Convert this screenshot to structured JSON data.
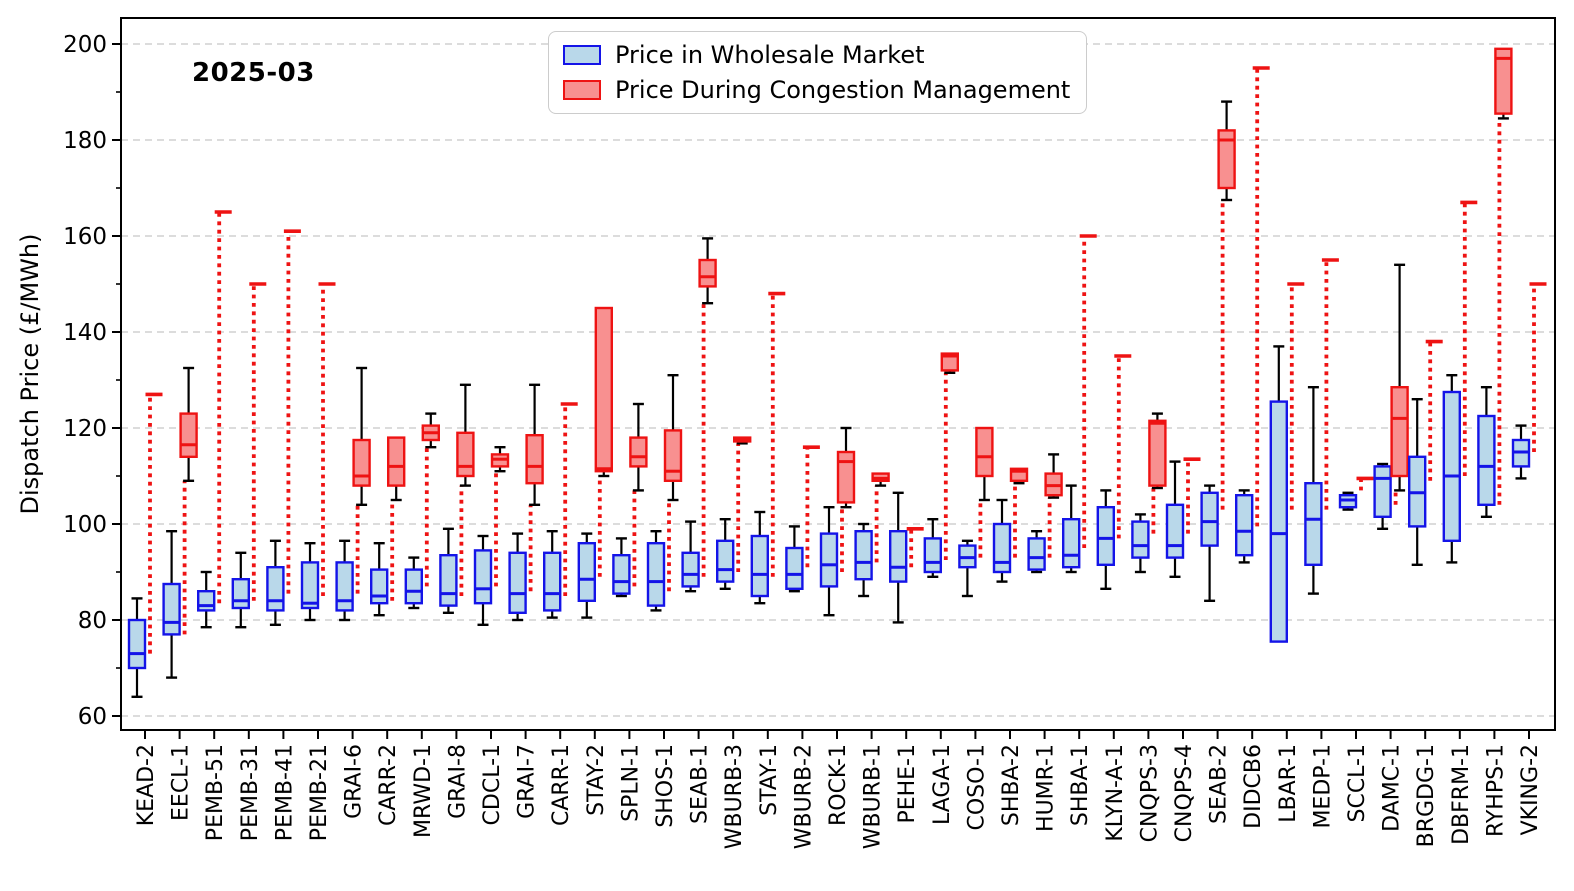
{
  "title": "2025-03",
  "ylabel": "Dispatch Price (£/MWh)",
  "legend": {
    "items": [
      {
        "label": "Price in Wholesale Market",
        "series": "wholesale"
      },
      {
        "label": "Price During Congestion Management",
        "series": "congestion"
      }
    ]
  },
  "colors": {
    "wholesale_fill": "#b9d8ea",
    "wholesale_border": "#1414e8",
    "congestion_fill": "#f89090",
    "congestion_border": "#ee1313",
    "whisker": "#000000",
    "connector": "#ee1313",
    "grid": "#d8d8d8",
    "spine": "#000000"
  },
  "chart_data": {
    "type": "boxplot",
    "title": "2025-03",
    "ylabel": "Dispatch Price (£/MWh)",
    "xlabel": "",
    "ylim": [
      57,
      205.5
    ],
    "yticks": [
      60,
      80,
      100,
      120,
      140,
      160,
      180,
      200
    ],
    "y_minor_ticks": [
      70,
      90,
      110,
      130,
      150,
      170,
      190
    ],
    "grid": "horizontal-dashed",
    "legend_position": "top-center",
    "series": [
      "Price in Wholesale Market",
      "Price During Congestion Management"
    ],
    "box_columns": [
      "whisker_low",
      "q1",
      "median",
      "q3",
      "whisker_high"
    ],
    "note": "wholesale = blue box (black whiskers); congestion = red box (black whiskers); link_from = bottom of red dotted connector rising to the congestion box",
    "units": [
      {
        "name": "KEAD-2",
        "wholesale": [
          64,
          70,
          73,
          80,
          84.5
        ],
        "congestion": [
          127,
          127,
          127,
          127,
          127
        ],
        "link_from": 73
      },
      {
        "name": "EECL-1",
        "wholesale": [
          68,
          77,
          79.5,
          87.5,
          98.5
        ],
        "congestion": [
          109,
          114,
          116.5,
          123,
          132.5
        ],
        "link_from": 77
      },
      {
        "name": "PEMB-51",
        "wholesale": [
          78.5,
          82,
          83,
          86,
          90
        ],
        "congestion": [
          165,
          165,
          165,
          165,
          165
        ],
        "link_from": 83.5
      },
      {
        "name": "PEMB-31",
        "wholesale": [
          78.5,
          82.5,
          84,
          88.5,
          94
        ],
        "congestion": [
          150,
          150,
          150,
          150,
          150
        ],
        "link_from": 84
      },
      {
        "name": "PEMB-41",
        "wholesale": [
          79,
          82,
          84,
          91,
          96.5
        ],
        "congestion": [
          161,
          161,
          161,
          161,
          161
        ],
        "link_from": 85.5
      },
      {
        "name": "PEMB-21",
        "wholesale": [
          80,
          82.5,
          83.5,
          92,
          96
        ],
        "congestion": [
          150,
          150,
          150,
          150,
          150
        ],
        "link_from": 85
      },
      {
        "name": "GRAI-6",
        "wholesale": [
          80,
          82,
          84,
          92,
          96.5
        ],
        "congestion": [
          104,
          108,
          110,
          117.5,
          132.5
        ],
        "link_from": 85.5
      },
      {
        "name": "CARR-2",
        "wholesale": [
          81,
          83.5,
          85,
          90.5,
          96
        ],
        "congestion": [
          105,
          108,
          112,
          118,
          118
        ],
        "link_from": 84
      },
      {
        "name": "MRWD-1",
        "wholesale": [
          82.5,
          83.5,
          86,
          90.5,
          93
        ],
        "congestion": [
          116,
          117.5,
          119,
          120.5,
          123
        ],
        "link_from": 87
      },
      {
        "name": "GRAI-8",
        "wholesale": [
          81.5,
          83,
          85.5,
          93.5,
          99
        ],
        "congestion": [
          108,
          110,
          112,
          119,
          129
        ],
        "link_from": 85
      },
      {
        "name": "CDCL-1",
        "wholesale": [
          79,
          83.5,
          86.5,
          94.5,
          97.5
        ],
        "congestion": [
          111,
          112,
          113.5,
          114.5,
          116
        ],
        "link_from": 87
      },
      {
        "name": "GRAI-7",
        "wholesale": [
          80,
          81.5,
          85.5,
          94,
          98
        ],
        "congestion": [
          104,
          108.5,
          112,
          118.5,
          129
        ],
        "link_from": 86
      },
      {
        "name": "CARR-1",
        "wholesale": [
          80.5,
          82,
          85.5,
          94,
          98.5
        ],
        "congestion": [
          125,
          125,
          125,
          125,
          125
        ],
        "link_from": 85
      },
      {
        "name": "STAY-2",
        "wholesale": [
          80.5,
          84,
          88.5,
          96,
          98
        ],
        "congestion": [
          110,
          111,
          111.5,
          145,
          145
        ],
        "link_from": 89
      },
      {
        "name": "SPLN-1",
        "wholesale": [
          85,
          85.5,
          88,
          93.5,
          97
        ],
        "congestion": [
          107,
          112,
          114,
          118,
          125
        ],
        "link_from": 87
      },
      {
        "name": "SHOS-1",
        "wholesale": [
          82,
          83,
          88,
          96,
          98.5
        ],
        "congestion": [
          105,
          109,
          111,
          119.5,
          131
        ],
        "link_from": 86
      },
      {
        "name": "SEAB-1",
        "wholesale": [
          86,
          87,
          89.5,
          94,
          100.5
        ],
        "congestion": [
          146,
          149.5,
          151.5,
          155,
          159.5
        ],
        "link_from": 89
      },
      {
        "name": "WBURB-3",
        "wholesale": [
          86.5,
          88,
          90.5,
          96.5,
          101
        ],
        "congestion": [
          116.8,
          117.2,
          117.6,
          118,
          118
        ],
        "link_from": 90
      },
      {
        "name": "STAY-1",
        "wholesale": [
          83.5,
          85,
          89.5,
          97.5,
          102.5
        ],
        "congestion": [
          148,
          148,
          148,
          148,
          148
        ],
        "link_from": 89
      },
      {
        "name": "WBURB-2",
        "wholesale": [
          86,
          86.5,
          89.5,
          95,
          99.5
        ],
        "congestion": [
          116,
          116,
          116,
          116,
          116
        ],
        "link_from": 91
      },
      {
        "name": "ROCK-1",
        "wholesale": [
          81,
          87,
          91.5,
          98,
          103.5
        ],
        "congestion": [
          103.5,
          104.5,
          113,
          115,
          120
        ],
        "link_from": 90
      },
      {
        "name": "WBURB-1",
        "wholesale": [
          85,
          88.5,
          92,
          98.5,
          100
        ],
        "congestion": [
          108,
          109,
          109.5,
          110.5,
          110.5
        ],
        "link_from": 92
      },
      {
        "name": "PEHE-1",
        "wholesale": [
          79.5,
          88,
          91,
          98.5,
          106.5
        ],
        "congestion": [
          99,
          99,
          99,
          99,
          99
        ],
        "link_from": 91
      },
      {
        "name": "LAGA-1",
        "wholesale": [
          89,
          90,
          92,
          97,
          101
        ],
        "congestion": [
          131.5,
          132,
          135,
          135.5,
          135.5
        ],
        "link_from": 92.5
      },
      {
        "name": "COSO-1",
        "wholesale": [
          85,
          91,
          93,
          95.5,
          96.5
        ],
        "congestion": [
          105,
          110,
          114,
          120,
          120
        ],
        "link_from": 93
      },
      {
        "name": "SHBA-2",
        "wholesale": [
          88,
          90,
          92,
          100,
          105
        ],
        "congestion": [
          108.5,
          109,
          111,
          111.5,
          111.5
        ],
        "link_from": 93
      },
      {
        "name": "HUMR-1",
        "wholesale": [
          90,
          90.5,
          93,
          97,
          98.5
        ],
        "congestion": [
          105.5,
          106,
          108,
          110.5,
          114.5
        ],
        "link_from": 93
      },
      {
        "name": "SHBA-1",
        "wholesale": [
          90,
          91,
          93.5,
          101,
          108
        ],
        "congestion": [
          160,
          160,
          160,
          160,
          160
        ],
        "link_from": 95
      },
      {
        "name": "KLYN-A-1",
        "wholesale": [
          86.5,
          91.5,
          97,
          103.5,
          107
        ],
        "congestion": [
          135,
          135,
          135,
          135,
          135
        ],
        "link_from": 97
      },
      {
        "name": "CNQPS-3",
        "wholesale": [
          90,
          93,
          95.5,
          100.5,
          102
        ],
        "congestion": [
          107.5,
          108,
          121,
          121.5,
          123
        ],
        "link_from": 98
      },
      {
        "name": "CNQPS-4",
        "wholesale": [
          89,
          93,
          95.5,
          104,
          113
        ],
        "congestion": [
          113.5,
          113.5,
          113.5,
          113.5,
          113.5
        ],
        "link_from": 98
      },
      {
        "name": "SEAB-2",
        "wholesale": [
          84,
          95.5,
          100.5,
          106.5,
          108
        ],
        "congestion": [
          167.5,
          170,
          180,
          182,
          188
        ],
        "link_from": 103
      },
      {
        "name": "DIDCB6",
        "wholesale": [
          92,
          93.5,
          98.5,
          106,
          107
        ],
        "congestion": [
          195,
          195,
          195,
          195,
          195
        ],
        "link_from": 99.5
      },
      {
        "name": "LBAR-1",
        "wholesale": [
          75.5,
          75.5,
          98,
          125.5,
          137
        ],
        "congestion": [
          150,
          150,
          150,
          150,
          150
        ],
        "link_from": 103
      },
      {
        "name": "MEDP-1",
        "wholesale": [
          85.5,
          91.5,
          101,
          108.5,
          128.5
        ],
        "congestion": [
          155,
          155,
          155,
          155,
          155
        ],
        "link_from": 103
      },
      {
        "name": "SCCL-1",
        "wholesale": [
          103,
          103.5,
          105,
          106,
          106.5
        ],
        "congestion": [
          109.5,
          109.5,
          109.5,
          109.5,
          109.5
        ],
        "link_from": 107
      },
      {
        "name": "DAMC-1",
        "wholesale": [
          99,
          101.5,
          109.5,
          112,
          112.5
        ],
        "congestion": [
          107,
          110,
          122,
          128.5,
          154
        ],
        "link_from": 104
      },
      {
        "name": "BRGDG-1",
        "wholesale": [
          91.5,
          99.5,
          106.5,
          114,
          126
        ],
        "congestion": [
          138,
          138,
          138,
          138,
          138
        ],
        "link_from": 109
      },
      {
        "name": "DBFRM-1",
        "wholesale": [
          92,
          96.5,
          110,
          127.5,
          131
        ],
        "congestion": [
          167,
          167,
          167,
          167,
          167
        ],
        "link_from": 110
      },
      {
        "name": "RYHPS-1",
        "wholesale": [
          101.5,
          104,
          112,
          122.5,
          128.5
        ],
        "congestion": [
          184.5,
          185.5,
          197,
          199,
          199
        ],
        "link_from": 104
      },
      {
        "name": "VKING-2",
        "wholesale": [
          109.5,
          112,
          115,
          117.5,
          120.5
        ],
        "congestion": [
          150,
          150,
          150,
          150,
          150
        ],
        "link_from": 115
      }
    ]
  }
}
